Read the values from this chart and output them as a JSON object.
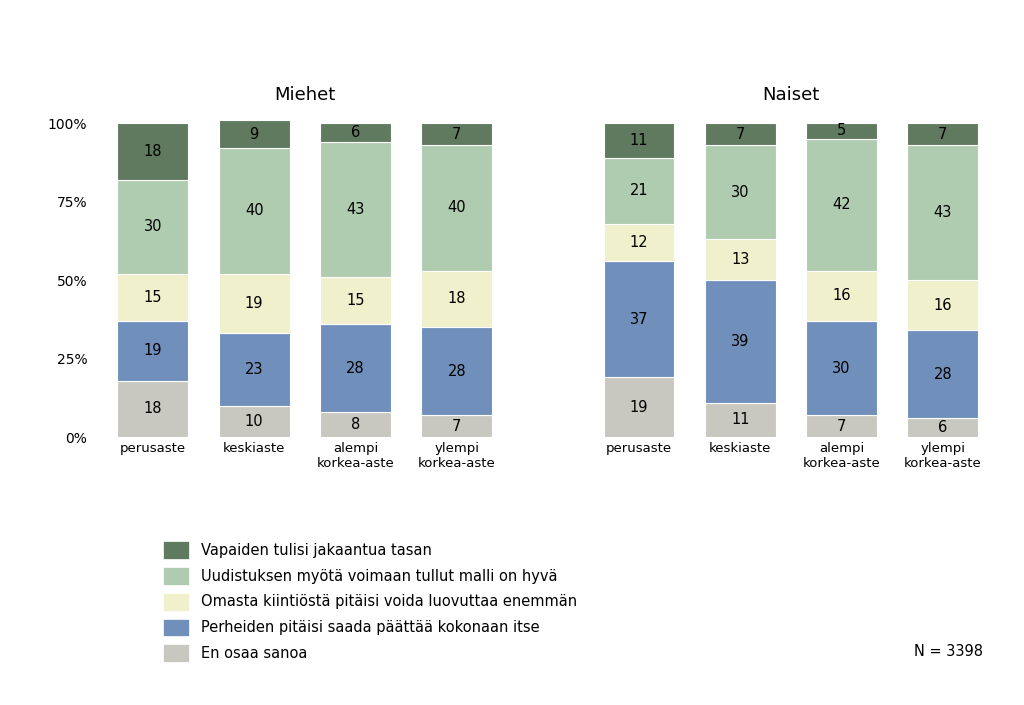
{
  "title_men": "Miehet",
  "title_women": "Naiset",
  "categories": [
    "perusaste",
    "keskiaste",
    "alempi\nkorkea-aste",
    "ylempi\nkorkea-aste"
  ],
  "men_data": {
    "en_osaa_sanoa": [
      18,
      10,
      8,
      7
    ],
    "perheiden": [
      19,
      23,
      28,
      28
    ],
    "omasta_kiintio": [
      15,
      19,
      15,
      18
    ],
    "uudistuksen": [
      30,
      40,
      43,
      40
    ],
    "vapaiden": [
      18,
      9,
      6,
      7
    ]
  },
  "women_data": {
    "en_osaa_sanoa": [
      19,
      11,
      7,
      6
    ],
    "perheiden": [
      37,
      39,
      30,
      28
    ],
    "omasta_kiintio": [
      12,
      13,
      16,
      16
    ],
    "uudistuksen": [
      21,
      30,
      42,
      43
    ],
    "vapaiden": [
      11,
      7,
      5,
      7
    ]
  },
  "colors": {
    "en_osaa_sanoa": "#c8c8c0",
    "perheiden": "#7090bb",
    "omasta_kiintio": "#f0f0cc",
    "uudistuksen": "#b0ccb0",
    "vapaiden": "#607a60"
  },
  "legend_labels": [
    "Vapaiden tulisi jakaantua tasan",
    "Uudistuksen myötä voimaan tullut malli on hyvä",
    "Omasta kiintiöstä pitäisi voida luovuttaa enemmän",
    "Perheiden pitäisi saada päättää kokonaan itse",
    "En osaa sanoa"
  ],
  "n_label": "N = 3398",
  "background_color": "#ffffff",
  "bar_width": 0.7,
  "yticks": [
    0,
    25,
    50,
    75,
    100
  ],
  "yticklabels": [
    "0%",
    "25%",
    "50%",
    "75%",
    "100%"
  ]
}
